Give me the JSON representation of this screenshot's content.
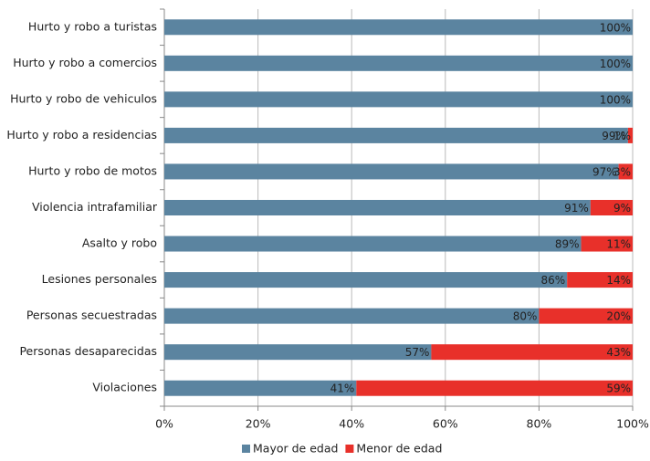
{
  "chart_data": {
    "type": "stacked-barh",
    "categories": [
      "Hurto y robo a turistas",
      "Hurto y robo a comercios",
      "Hurto y robo de vehiculos",
      "Hurto y robo a residencias",
      "Hurto y robo de motos",
      "Violencia intrafamiliar",
      "Asalto y robo",
      "Lesiones personales",
      "Personas secuestradas",
      "Personas desaparecidas",
      "Violaciones"
    ],
    "series": [
      {
        "name": "Mayor de edad",
        "color": "#5b84a0",
        "values": [
          100,
          100,
          100,
          99,
          97,
          91,
          89,
          86,
          80,
          57,
          41
        ],
        "value_labels": [
          "100%",
          "100%",
          "100%",
          "99%",
          "97%",
          "91%",
          "89%",
          "86%",
          "80%",
          "57%",
          "41%"
        ]
      },
      {
        "name": "Menor de edad",
        "color": "#e8302a",
        "values": [
          0,
          0,
          0,
          1,
          3,
          9,
          11,
          14,
          20,
          43,
          59
        ],
        "value_labels": [
          null,
          null,
          null,
          "1%",
          "3%",
          "9%",
          "11%",
          "14%",
          "20%",
          "43%",
          "59%"
        ]
      }
    ],
    "xlim": [
      0,
      100
    ],
    "xticks": [
      {
        "value": 0,
        "label": "0%"
      },
      {
        "value": 20,
        "label": "20%"
      },
      {
        "value": 40,
        "label": "40%"
      },
      {
        "value": 60,
        "label": "60%"
      },
      {
        "value": 80,
        "label": "80%"
      },
      {
        "value": 100,
        "label": "100%"
      }
    ],
    "grid": true,
    "legend": "bottom"
  }
}
